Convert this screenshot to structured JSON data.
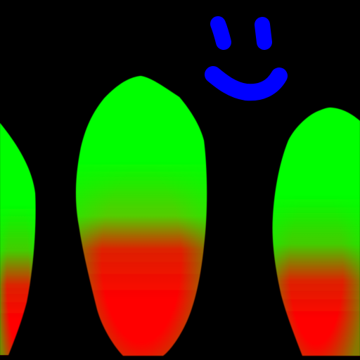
{
  "scene": {
    "background_color": "#000000",
    "blobs": [
      {
        "name": "left-partial-blob",
        "top_color": "#00ff00",
        "bottom_color": "#ff0000"
      },
      {
        "name": "center-blob",
        "top_color": "#00ff00",
        "bottom_color": "#ff0000"
      },
      {
        "name": "right-blob",
        "top_color": "#00ff00",
        "bottom_color": "#ff0000"
      }
    ],
    "smiley": {
      "name": "smiley-face-icon",
      "color": "#0000ff",
      "parts": [
        "left-eye",
        "right-eye",
        "mouth"
      ]
    }
  }
}
